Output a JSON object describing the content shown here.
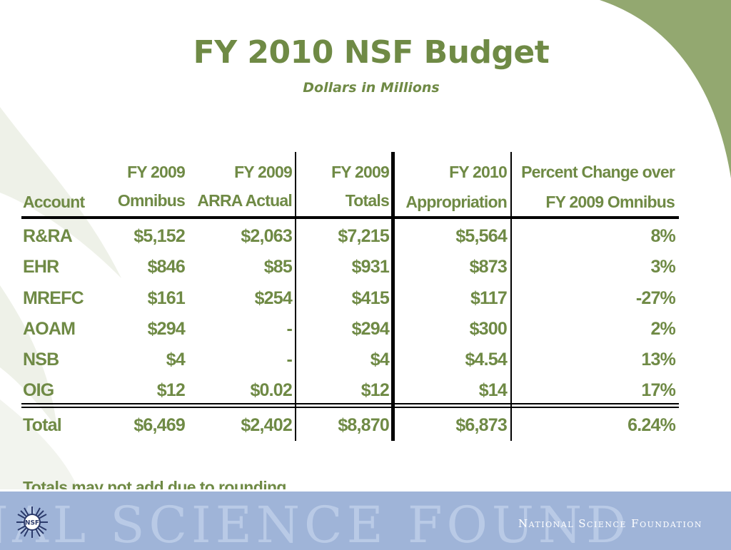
{
  "slide": {
    "title": "FY 2010 NSF Budget",
    "subtitle": "Dollars in Millions"
  },
  "table": {
    "headers": {
      "account": "Account",
      "omnibus_l1": "FY 2009",
      "omnibus_l2": "Omnibus",
      "arra_l1": "FY 2009",
      "arra_l2": "ARRA Actual",
      "totals_l1": "FY 2009",
      "totals_l2": "Totals",
      "fy2010_l1": "FY 2010",
      "fy2010_l2": "Appropriation",
      "pct_l1": "Percent  Change over",
      "pct_l2": "FY 2009 Omnibus"
    },
    "rows": [
      {
        "account": "R&RA",
        "omnibus": "$5,152",
        "arra": "$2,063",
        "totals": "$7,215",
        "fy2010": "$5,564",
        "pct": "8%"
      },
      {
        "account": "EHR",
        "omnibus": "$846",
        "arra": "$85",
        "totals": "$931",
        "fy2010": "$873",
        "pct": "3%"
      },
      {
        "account": "MREFC",
        "omnibus": "$161",
        "arra": "$254",
        "totals": "$415",
        "fy2010": "$117",
        "pct": "-27%"
      },
      {
        "account": "AOAM",
        "omnibus": "$294",
        "arra": "-",
        "totals": "$294",
        "fy2010": "$300",
        "pct": "2%"
      },
      {
        "account": "NSB",
        "omnibus": "$4",
        "arra": "-",
        "totals": "$4",
        "fy2010": "$4.54",
        "pct": "13%"
      },
      {
        "account": "OIG",
        "omnibus": "$12",
        "arra": "$0.02",
        "totals": "$12",
        "fy2010": "$14",
        "pct": "17%"
      }
    ],
    "total": {
      "account": "Total",
      "omnibus": "$6,469",
      "arra": "$2,402",
      "totals": "$8,870",
      "fy2010": "$6,873",
      "pct": "6.24%"
    }
  },
  "note": "Totals may not add due to rounding.",
  "footer": {
    "org_name": "National Science Foundation",
    "watermark": "NAL SCIENCE FOUND",
    "logo_text": "NSF",
    "logo_icon": "nsf-logo-icon"
  },
  "colors": {
    "text_green": "#6f8a45",
    "accent_green": "#93a870",
    "footer_blue": "#9fb4d8"
  }
}
